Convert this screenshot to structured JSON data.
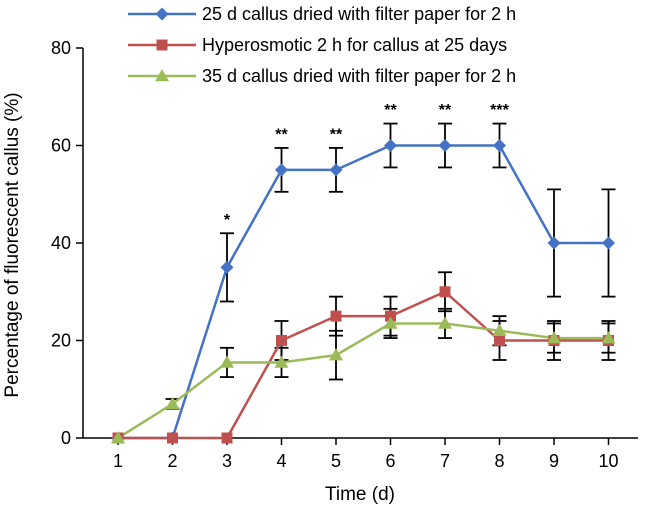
{
  "chart_data": {
    "type": "line",
    "xlabel": "Time (d)",
    "ylabel": "Percentage of fluorescent callus (%)",
    "x": [
      1,
      2,
      3,
      4,
      5,
      6,
      7,
      8,
      9,
      10
    ],
    "xticks": [
      "1",
      "2",
      "3",
      "4",
      "5",
      "6",
      "7",
      "8",
      "9",
      "10"
    ],
    "ylim": [
      0,
      80
    ],
    "yticks": [
      "0",
      "20",
      "40",
      "60",
      "80"
    ],
    "grid": false,
    "legend_position": "top",
    "series": [
      {
        "name": "25 d callus dried with filter paper for 2 h",
        "color": "#4472C4",
        "marker": "diamond",
        "values": [
          0,
          0,
          35,
          55,
          55,
          60,
          60,
          60,
          40,
          40
        ],
        "errors": [
          0,
          0,
          7,
          4.5,
          4.5,
          4.5,
          4.5,
          4.5,
          11,
          11
        ]
      },
      {
        "name": "Hyperosmotic 2 h for callus at 25 days",
        "color": "#C0504D",
        "marker": "square",
        "values": [
          0,
          0,
          0,
          20,
          25,
          25,
          30,
          20,
          20,
          20
        ],
        "errors": [
          0,
          0,
          0,
          4,
          4,
          4,
          4,
          4,
          4,
          4
        ]
      },
      {
        "name": "35 d callus dried with filter paper for 2 h",
        "color": "#9BBB59",
        "marker": "triangle",
        "values": [
          0,
          7,
          15.5,
          15.5,
          17,
          23.5,
          23.5,
          22,
          20.5,
          20.5
        ],
        "errors": [
          0,
          1,
          3,
          3,
          5,
          3,
          3,
          3,
          3,
          3
        ]
      }
    ],
    "annotations": [
      {
        "x": 3,
        "y": 42.5,
        "text": "*"
      },
      {
        "x": 4,
        "y": 60,
        "text": "**"
      },
      {
        "x": 5,
        "y": 60,
        "text": "**"
      },
      {
        "x": 6,
        "y": 65,
        "text": "**"
      },
      {
        "x": 7,
        "y": 65,
        "text": "**"
      },
      {
        "x": 8,
        "y": 65,
        "text": "***"
      }
    ]
  }
}
